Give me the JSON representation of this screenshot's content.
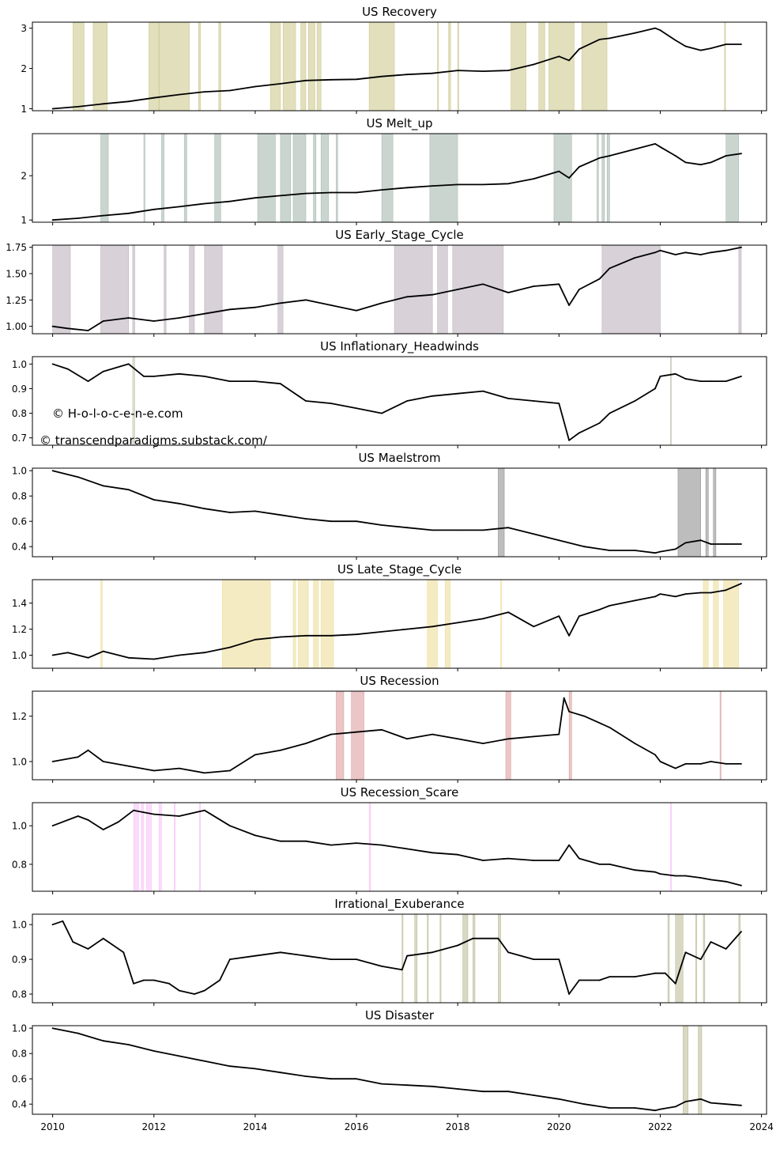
{
  "watermarks": [
    "© H-o-l-o-c-e-n-e.com",
    "© transcendparadigms.substack.com/"
  ],
  "x_axis": {
    "min": 2009.6,
    "max": 2024.1,
    "ticks": [
      "2010",
      "2012",
      "2014",
      "2016",
      "2018",
      "2020",
      "2022",
      "2024"
    ]
  },
  "chart_data": [
    {
      "type": "line",
      "title": "US Recovery",
      "ylim": [
        0.95,
        3.15
      ],
      "yticks": [
        "1",
        "2",
        "3"
      ],
      "shade_color": "#bdb76b",
      "x": [
        2010.0,
        2010.5,
        2011.0,
        2011.5,
        2012.0,
        2012.5,
        2013.0,
        2013.5,
        2014.0,
        2014.5,
        2015.0,
        2015.5,
        2016.0,
        2016.5,
        2017.0,
        2017.5,
        2018.0,
        2018.5,
        2019.0,
        2019.5,
        2020.0,
        2020.2,
        2020.4,
        2020.8,
        2021.0,
        2021.5,
        2021.9,
        2022.0,
        2022.3,
        2022.5,
        2022.8,
        2023.0,
        2023.3,
        2023.6
      ],
      "values": [
        1.0,
        1.05,
        1.12,
        1.18,
        1.27,
        1.35,
        1.42,
        1.45,
        1.55,
        1.62,
        1.7,
        1.72,
        1.73,
        1.8,
        1.85,
        1.88,
        1.95,
        1.93,
        1.95,
        2.1,
        2.3,
        2.2,
        2.48,
        2.72,
        2.75,
        2.88,
        3.0,
        2.95,
        2.7,
        2.55,
        2.45,
        2.5,
        2.6,
        2.6
      ],
      "shaded": [
        [
          2010.4,
          2010.62
        ],
        [
          2010.8,
          2011.08
        ],
        [
          2011.9,
          2012.1
        ],
        [
          2012.1,
          2012.7
        ],
        [
          2012.88,
          2012.92
        ],
        [
          2013.28,
          2013.32
        ],
        [
          2014.3,
          2014.5
        ],
        [
          2014.55,
          2014.8
        ],
        [
          2014.9,
          2015.0
        ],
        [
          2015.05,
          2015.18
        ],
        [
          2015.22,
          2015.3
        ],
        [
          2016.25,
          2016.75
        ],
        [
          2017.6,
          2017.62
        ],
        [
          2017.82,
          2017.86
        ],
        [
          2018.0,
          2018.02
        ],
        [
          2019.05,
          2019.35
        ],
        [
          2019.6,
          2019.72
        ],
        [
          2019.8,
          2020.3
        ],
        [
          2020.45,
          2020.95
        ],
        [
          2023.27,
          2023.29
        ]
      ]
    },
    {
      "type": "line",
      "title": "US Melt_up",
      "ylim": [
        0.95,
        2.95
      ],
      "yticks": [
        "1",
        "2"
      ],
      "shade_color": "#8aa197",
      "x": [
        2010.0,
        2010.5,
        2011.0,
        2011.5,
        2012.0,
        2012.5,
        2013.0,
        2013.5,
        2014.0,
        2014.5,
        2015.0,
        2015.5,
        2016.0,
        2016.5,
        2017.0,
        2017.5,
        2018.0,
        2018.5,
        2019.0,
        2019.5,
        2020.0,
        2020.2,
        2020.4,
        2020.8,
        2021.0,
        2021.5,
        2021.9,
        2022.0,
        2022.3,
        2022.5,
        2022.8,
        2023.0,
        2023.3,
        2023.6
      ],
      "values": [
        1.0,
        1.04,
        1.1,
        1.15,
        1.24,
        1.3,
        1.37,
        1.42,
        1.5,
        1.55,
        1.6,
        1.62,
        1.62,
        1.68,
        1.73,
        1.77,
        1.8,
        1.8,
        1.82,
        1.93,
        2.1,
        1.95,
        2.2,
        2.4,
        2.45,
        2.6,
        2.72,
        2.65,
        2.45,
        2.3,
        2.25,
        2.3,
        2.45,
        2.5
      ],
      "shaded": [
        [
          2010.95,
          2011.1
        ],
        [
          2011.8,
          2011.82
        ],
        [
          2012.15,
          2012.2
        ],
        [
          2012.6,
          2012.65
        ],
        [
          2013.2,
          2013.32
        ],
        [
          2014.05,
          2014.4
        ],
        [
          2014.5,
          2014.7
        ],
        [
          2014.75,
          2015.0
        ],
        [
          2015.15,
          2015.2
        ],
        [
          2015.3,
          2015.45
        ],
        [
          2015.6,
          2015.63
        ],
        [
          2016.5,
          2016.72
        ],
        [
          2017.45,
          2018.0
        ],
        [
          2019.9,
          2020.25
        ],
        [
          2020.75,
          2020.78
        ],
        [
          2020.85,
          2020.9
        ],
        [
          2020.95,
          2021.0
        ],
        [
          2023.3,
          2023.55
        ]
      ]
    },
    {
      "type": "line",
      "title": "US Early_Stage_Cycle",
      "ylim": [
        0.93,
        1.77
      ],
      "yticks": [
        "1.00",
        "1.25",
        "1.50",
        "1.75"
      ],
      "shade_color": "#a898a8",
      "x": [
        2010.0,
        2010.3,
        2010.7,
        2011.0,
        2011.5,
        2012.0,
        2012.5,
        2013.0,
        2013.5,
        2014.0,
        2014.5,
        2015.0,
        2015.5,
        2016.0,
        2016.5,
        2017.0,
        2017.5,
        2018.0,
        2018.5,
        2019.0,
        2019.5,
        2020.0,
        2020.2,
        2020.4,
        2020.8,
        2021.0,
        2021.5,
        2021.9,
        2022.0,
        2022.3,
        2022.5,
        2022.8,
        2023.0,
        2023.3,
        2023.6
      ],
      "values": [
        1.0,
        0.98,
        0.96,
        1.05,
        1.08,
        1.05,
        1.08,
        1.12,
        1.16,
        1.18,
        1.22,
        1.25,
        1.2,
        1.15,
        1.22,
        1.28,
        1.3,
        1.35,
        1.4,
        1.32,
        1.38,
        1.4,
        1.2,
        1.35,
        1.45,
        1.55,
        1.65,
        1.7,
        1.72,
        1.68,
        1.7,
        1.68,
        1.7,
        1.72,
        1.75
      ],
      "shaded": [
        [
          2010.0,
          2010.35
        ],
        [
          2010.95,
          2011.5
        ],
        [
          2011.58,
          2011.62
        ],
        [
          2012.2,
          2012.24
        ],
        [
          2012.7,
          2012.8
        ],
        [
          2013.0,
          2013.35
        ],
        [
          2014.45,
          2014.55
        ],
        [
          2016.75,
          2017.5
        ],
        [
          2017.6,
          2017.8
        ],
        [
          2017.9,
          2018.9
        ],
        [
          2020.85,
          2022.0
        ],
        [
          2023.55,
          2023.6
        ]
      ]
    },
    {
      "type": "line",
      "title": "US Inflationary_Headwinds",
      "ylim": [
        0.67,
        1.03
      ],
      "yticks": [
        "0.7",
        "0.8",
        "0.9",
        "1.0"
      ],
      "shade_color": "#b3b39b",
      "x": [
        2010.0,
        2010.3,
        2010.7,
        2011.0,
        2011.5,
        2011.8,
        2012.0,
        2012.5,
        2013.0,
        2013.5,
        2014.0,
        2014.5,
        2015.0,
        2015.5,
        2016.0,
        2016.5,
        2017.0,
        2017.5,
        2018.0,
        2018.5,
        2019.0,
        2019.5,
        2020.0,
        2020.2,
        2020.4,
        2020.8,
        2021.0,
        2021.5,
        2021.9,
        2022.0,
        2022.3,
        2022.5,
        2022.8,
        2023.0,
        2023.3,
        2023.6
      ],
      "values": [
        1.0,
        0.98,
        0.93,
        0.97,
        1.0,
        0.95,
        0.95,
        0.96,
        0.95,
        0.93,
        0.93,
        0.92,
        0.85,
        0.84,
        0.82,
        0.8,
        0.85,
        0.87,
        0.88,
        0.89,
        0.86,
        0.85,
        0.84,
        0.69,
        0.72,
        0.76,
        0.8,
        0.85,
        0.9,
        0.95,
        0.96,
        0.94,
        0.93,
        0.93,
        0.93,
        0.95
      ],
      "shaded": [
        [
          2011.58,
          2011.62
        ],
        [
          2022.2,
          2022.22
        ]
      ]
    },
    {
      "type": "line",
      "title": "US Maelstrom",
      "ylim": [
        0.32,
        1.02
      ],
      "yticks": [
        "0.4",
        "0.6",
        "0.8",
        "1.0"
      ],
      "shade_color": "#6d6d6d",
      "x": [
        2010.0,
        2010.5,
        2011.0,
        2011.5,
        2012.0,
        2012.5,
        2013.0,
        2013.5,
        2014.0,
        2014.5,
        2015.0,
        2015.5,
        2016.0,
        2016.5,
        2017.0,
        2017.5,
        2018.0,
        2018.5,
        2019.0,
        2019.5,
        2020.0,
        2020.5,
        2021.0,
        2021.5,
        2021.9,
        2022.0,
        2022.3,
        2022.5,
        2022.8,
        2023.0,
        2023.3,
        2023.6
      ],
      "values": [
        1.0,
        0.95,
        0.88,
        0.85,
        0.77,
        0.74,
        0.7,
        0.67,
        0.68,
        0.65,
        0.62,
        0.6,
        0.6,
        0.57,
        0.55,
        0.53,
        0.53,
        0.53,
        0.55,
        0.5,
        0.45,
        0.4,
        0.37,
        0.37,
        0.35,
        0.36,
        0.38,
        0.43,
        0.45,
        0.42,
        0.42,
        0.42
      ],
      "shaded": [
        [
          2018.8,
          2018.92
        ],
        [
          2022.35,
          2022.8
        ],
        [
          2022.9,
          2022.95
        ],
        [
          2023.05,
          2023.1
        ]
      ]
    },
    {
      "type": "line",
      "title": "US Late_Stage_Cycle",
      "ylim": [
        0.9,
        1.58
      ],
      "yticks": [
        "1.0",
        "1.2",
        "1.4"
      ],
      "shade_color": "#e6d27a",
      "x": [
        2010.0,
        2010.3,
        2010.7,
        2011.0,
        2011.5,
        2012.0,
        2012.5,
        2013.0,
        2013.5,
        2014.0,
        2014.5,
        2015.0,
        2015.5,
        2016.0,
        2016.5,
        2017.0,
        2017.5,
        2018.0,
        2018.5,
        2019.0,
        2019.5,
        2020.0,
        2020.2,
        2020.4,
        2020.8,
        2021.0,
        2021.5,
        2021.9,
        2022.0,
        2022.3,
        2022.5,
        2022.8,
        2023.0,
        2023.3,
        2023.6
      ],
      "values": [
        1.0,
        1.02,
        0.98,
        1.03,
        0.98,
        0.97,
        1.0,
        1.02,
        1.06,
        1.12,
        1.14,
        1.15,
        1.15,
        1.16,
        1.18,
        1.2,
        1.22,
        1.25,
        1.28,
        1.33,
        1.22,
        1.3,
        1.15,
        1.3,
        1.35,
        1.38,
        1.42,
        1.45,
        1.47,
        1.45,
        1.47,
        1.48,
        1.48,
        1.5,
        1.55
      ],
      "shaded": [
        [
          2010.95,
          2010.98
        ],
        [
          2013.35,
          2014.3
        ],
        [
          2014.75,
          2014.8
        ],
        [
          2014.85,
          2015.05
        ],
        [
          2015.15,
          2015.25
        ],
        [
          2015.3,
          2015.55
        ],
        [
          2017.4,
          2017.6
        ],
        [
          2017.75,
          2017.85
        ],
        [
          2018.85,
          2018.87
        ],
        [
          2022.85,
          2022.95
        ],
        [
          2023.05,
          2023.15
        ],
        [
          2023.25,
          2023.55
        ]
      ]
    },
    {
      "type": "line",
      "title": "US Recession",
      "ylim": [
        0.92,
        1.31
      ],
      "yticks": [
        "1.0",
        "1.2"
      ],
      "shade_color": "#d28080",
      "x": [
        2010.0,
        2010.5,
        2010.7,
        2011.0,
        2011.5,
        2012.0,
        2012.5,
        2013.0,
        2013.5,
        2014.0,
        2014.5,
        2015.0,
        2015.5,
        2016.0,
        2016.5,
        2017.0,
        2017.5,
        2018.0,
        2018.5,
        2019.0,
        2019.5,
        2020.0,
        2020.1,
        2020.2,
        2020.5,
        2021.0,
        2021.5,
        2021.9,
        2022.0,
        2022.3,
        2022.5,
        2022.8,
        2023.0,
        2023.3,
        2023.6
      ],
      "values": [
        1.0,
        1.02,
        1.05,
        1.0,
        0.98,
        0.96,
        0.97,
        0.95,
        0.96,
        1.03,
        1.05,
        1.08,
        1.12,
        1.13,
        1.14,
        1.1,
        1.12,
        1.1,
        1.08,
        1.1,
        1.11,
        1.12,
        1.28,
        1.22,
        1.2,
        1.15,
        1.08,
        1.03,
        1.0,
        0.97,
        0.99,
        0.99,
        1.0,
        0.99,
        0.99
      ],
      "shaded": [
        [
          2015.6,
          2015.75
        ],
        [
          2015.9,
          2016.15
        ],
        [
          2018.95,
          2019.05
        ],
        [
          2020.2,
          2020.25
        ],
        [
          2023.18,
          2023.2
        ]
      ]
    },
    {
      "type": "line",
      "title": "US Recession_Scare",
      "ylim": [
        0.66,
        1.12
      ],
      "yticks": [
        "0.8",
        "1.0"
      ],
      "shade_color": "#f5b0f5",
      "x": [
        2010.0,
        2010.5,
        2010.7,
        2011.0,
        2011.3,
        2011.6,
        2011.8,
        2012.0,
        2012.5,
        2013.0,
        2013.5,
        2014.0,
        2014.5,
        2015.0,
        2015.5,
        2016.0,
        2016.5,
        2017.0,
        2017.5,
        2018.0,
        2018.5,
        2019.0,
        2019.5,
        2020.0,
        2020.2,
        2020.4,
        2020.8,
        2021.0,
        2021.5,
        2021.9,
        2022.0,
        2022.3,
        2022.5,
        2022.8,
        2023.0,
        2023.3,
        2023.6
      ],
      "values": [
        1.0,
        1.05,
        1.03,
        0.98,
        1.02,
        1.08,
        1.07,
        1.06,
        1.05,
        1.08,
        1.0,
        0.95,
        0.92,
        0.92,
        0.9,
        0.91,
        0.9,
        0.88,
        0.86,
        0.85,
        0.82,
        0.83,
        0.82,
        0.82,
        0.9,
        0.83,
        0.8,
        0.8,
        0.77,
        0.76,
        0.75,
        0.74,
        0.74,
        0.73,
        0.72,
        0.71,
        0.69
      ],
      "shaded": [
        [
          2011.6,
          2011.7
        ],
        [
          2011.75,
          2011.8
        ],
        [
          2011.85,
          2011.95
        ],
        [
          2012.1,
          2012.15
        ],
        [
          2012.4,
          2012.42
        ],
        [
          2012.9,
          2012.92
        ],
        [
          2016.25,
          2016.28
        ],
        [
          2022.2,
          2022.22
        ]
      ]
    },
    {
      "type": "line",
      "title": "Irrational_Exuberance",
      "ylim": [
        0.775,
        1.03
      ],
      "yticks": [
        "0.8",
        "0.9",
        "1.0"
      ],
      "shade_color": "#a8a87a",
      "x": [
        2010.0,
        2010.2,
        2010.4,
        2010.7,
        2011.0,
        2011.4,
        2011.6,
        2011.8,
        2012.0,
        2012.3,
        2012.5,
        2012.8,
        2013.0,
        2013.3,
        2013.5,
        2014.0,
        2014.5,
        2015.0,
        2015.5,
        2016.0,
        2016.5,
        2016.9,
        2017.0,
        2017.5,
        2018.0,
        2018.3,
        2018.8,
        2019.0,
        2019.5,
        2020.0,
        2020.2,
        2020.4,
        2020.8,
        2021.0,
        2021.5,
        2021.9,
        2022.1,
        2022.3,
        2022.5,
        2022.8,
        2023.0,
        2023.3,
        2023.6
      ],
      "values": [
        1.0,
        1.01,
        0.95,
        0.93,
        0.96,
        0.92,
        0.83,
        0.84,
        0.84,
        0.83,
        0.81,
        0.8,
        0.81,
        0.84,
        0.9,
        0.91,
        0.92,
        0.91,
        0.9,
        0.9,
        0.88,
        0.87,
        0.91,
        0.92,
        0.94,
        0.96,
        0.96,
        0.92,
        0.9,
        0.9,
        0.8,
        0.84,
        0.84,
        0.85,
        0.85,
        0.86,
        0.86,
        0.83,
        0.92,
        0.9,
        0.95,
        0.93,
        0.98
      ],
      "shaded": [
        [
          2016.9,
          2016.92
        ],
        [
          2017.15,
          2017.2
        ],
        [
          2017.4,
          2017.42
        ],
        [
          2017.65,
          2017.67
        ],
        [
          2018.1,
          2018.2
        ],
        [
          2018.3,
          2018.34
        ],
        [
          2018.8,
          2018.85
        ],
        [
          2022.15,
          2022.18
        ],
        [
          2022.3,
          2022.45
        ],
        [
          2022.7,
          2022.72
        ],
        [
          2022.85,
          2022.88
        ],
        [
          2023.55,
          2023.58
        ]
      ]
    },
    {
      "type": "line",
      "title": "US Disaster",
      "ylim": [
        0.32,
        1.02
      ],
      "yticks": [
        "0.4",
        "0.6",
        "0.8",
        "1.0"
      ],
      "shade_color": "#a8a87a",
      "x": [
        2010.0,
        2010.5,
        2011.0,
        2011.5,
        2012.0,
        2012.5,
        2013.0,
        2013.5,
        2014.0,
        2014.5,
        2015.0,
        2015.5,
        2016.0,
        2016.5,
        2017.0,
        2017.5,
        2018.0,
        2018.5,
        2019.0,
        2019.5,
        2020.0,
        2020.5,
        2021.0,
        2021.5,
        2021.9,
        2022.0,
        2022.3,
        2022.5,
        2022.8,
        2023.0,
        2023.3,
        2023.6
      ],
      "values": [
        1.0,
        0.96,
        0.9,
        0.87,
        0.82,
        0.78,
        0.74,
        0.7,
        0.68,
        0.65,
        0.62,
        0.6,
        0.6,
        0.56,
        0.55,
        0.54,
        0.52,
        0.5,
        0.5,
        0.47,
        0.44,
        0.4,
        0.37,
        0.37,
        0.35,
        0.36,
        0.38,
        0.42,
        0.44,
        0.41,
        0.4,
        0.39
      ],
      "shaded": [
        [
          2022.45,
          2022.55
        ],
        [
          2022.75,
          2022.82
        ]
      ]
    }
  ]
}
